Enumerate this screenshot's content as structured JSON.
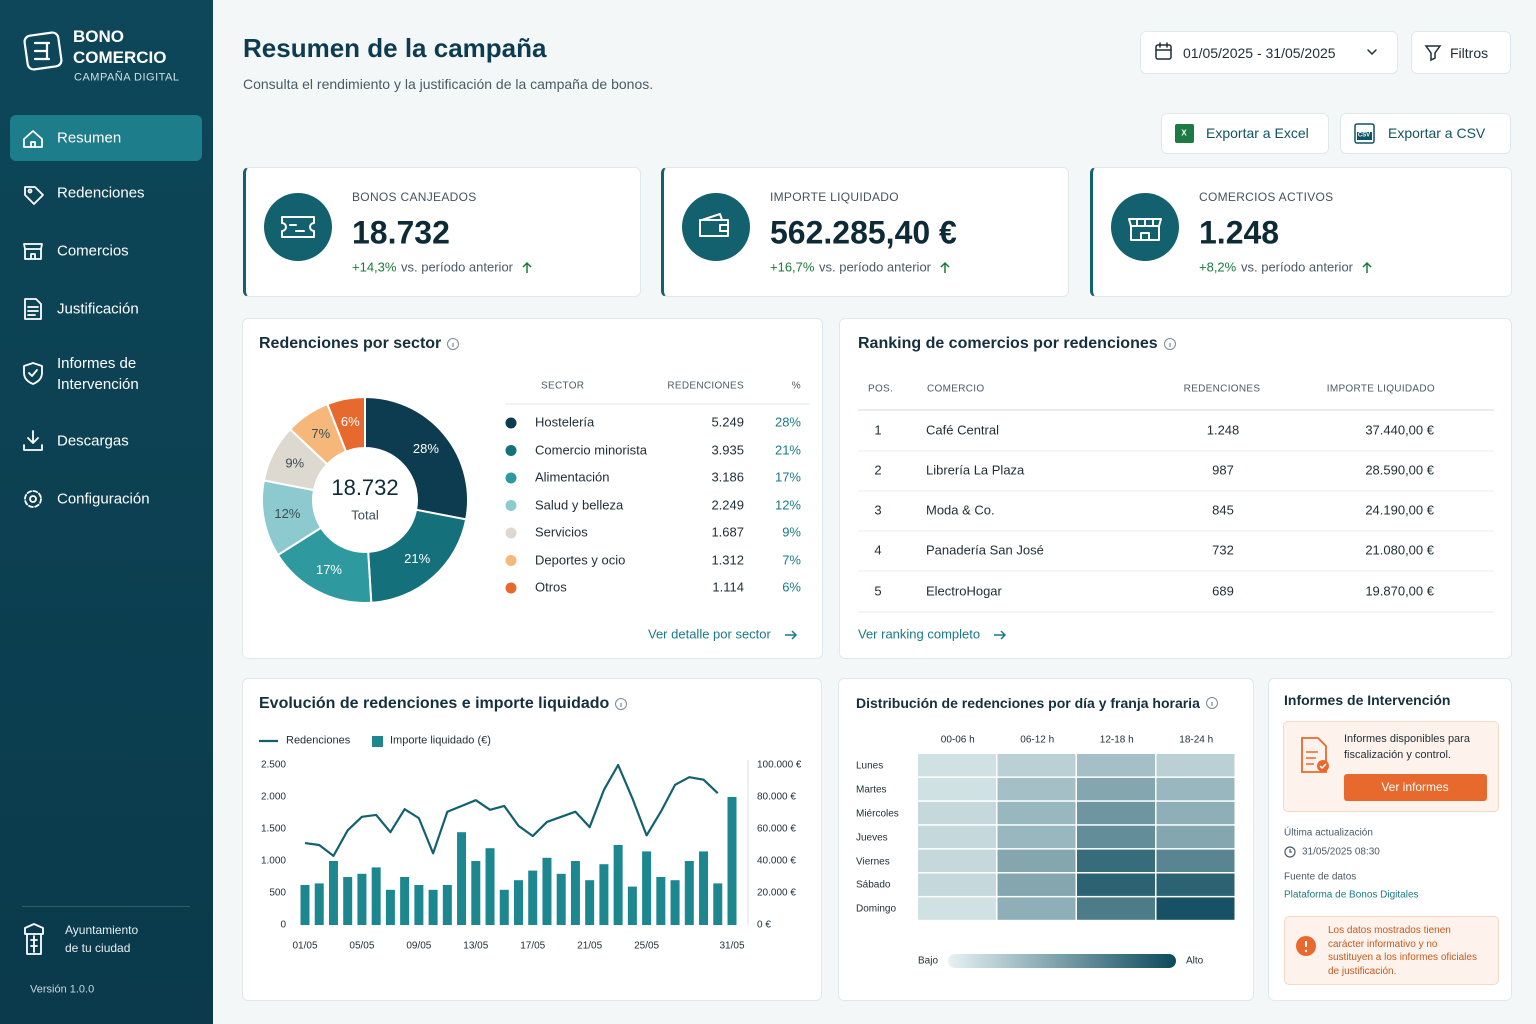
{
  "sidebar": {
    "brand": {
      "line1": "BONO",
      "line2": "COMERCIO",
      "line3": "CAMPAÑA DIGITAL"
    },
    "nav": [
      "Resumen",
      "Redenciones",
      "Comercios",
      "Justificación",
      "Informes de Intervención",
      "Descargas",
      "Configuración"
    ],
    "org": {
      "line1": "Ayuntamiento",
      "line2": "de tu ciudad"
    },
    "version": "Versión 1.0.0"
  },
  "header": {
    "title": "Resumen de la campaña",
    "subtitle": "Consulta el rendimiento y la justificación de la campaña de bonos.",
    "date_range": "01/05/2025 - 31/05/2025",
    "filters": "Filtros",
    "excel_badge": "X",
    "export_excel": "Exportar a Excel",
    "csv_badge": "CSV",
    "export_csv": "Exportar a CSV"
  },
  "kpis": [
    {
      "label": "BONOS CANJEADOS",
      "value": "18.732",
      "change": "+14,3%",
      "note": "vs. período anterior"
    },
    {
      "label": "IMPORTE LIQUIDADO",
      "value": "562.285,40 €",
      "change": "+16,7%",
      "note": "vs. período anterior"
    },
    {
      "label": "COMERCIOS ACTIVOS",
      "value": "1.248",
      "change": "+8,2%",
      "note": "vs. período anterior"
    }
  ],
  "ranking": {
    "title": "Ranking de comercios por redenciones",
    "columns": [
      "POS.",
      "COMERCIO",
      "REDENCIONES",
      "IMPORTE LIQUIDADO"
    ],
    "rows": [
      [
        "1",
        "Café Central",
        "1.248",
        "37.440,00 €"
      ],
      [
        "2",
        "Librería La Plaza",
        "987",
        "28.590,00 €"
      ],
      [
        "3",
        "Moda & Co.",
        "845",
        "24.190,00 €"
      ],
      [
        "4",
        "Panadería San José",
        "732",
        "21.080,00 €"
      ],
      [
        "5",
        "ElectroHogar",
        "689",
        "19.870,00 €"
      ]
    ],
    "link": "Ver ranking completo"
  },
  "reports": {
    "title": "Informes de Intervención",
    "text": "Informes disponibles para fiscalización y control.",
    "button": "Ver informes",
    "updated_label": "Última actualización",
    "updated": "31/05/2025 08:30",
    "source_label": "Fuente de datos",
    "source": "Plataforma de Bonos Digitales",
    "notice": "Los datos mostrados tienen carácter informativo y no sustituyen a los informes oficiales de justificación."
  },
  "chart_data": [
    {
      "type": "donut",
      "title": "Redenciones por sector",
      "center_value": "18.732",
      "center_label": "Total",
      "columns": [
        "SECTOR",
        "REDENCIONES",
        "%"
      ],
      "categories": [
        "Hostelería",
        "Comercio minorista",
        "Alimentación",
        "Salud y belleza",
        "Servicios",
        "Deportes y ocio",
        "Otros"
      ],
      "values": [
        5249,
        3935,
        3186,
        2249,
        1687,
        1312,
        1114
      ],
      "value_labels": [
        "5.249",
        "3.935",
        "3.186",
        "2.249",
        "1.687",
        "1.312",
        "1.114"
      ],
      "shares": [
        28,
        21,
        17,
        12,
        9,
        7,
        6
      ],
      "share_labels": [
        "28%",
        "21%",
        "17%",
        "12%",
        "9%",
        "7%",
        "6%"
      ],
      "colors": [
        "#0d3b4f",
        "#14707a",
        "#2e9aa0",
        "#8ccad0",
        "#ddd8d0",
        "#f5b77a",
        "#e8692e"
      ],
      "link": "Ver detalle por sector"
    },
    {
      "type": "bar_line",
      "title": "Evolución de redenciones e importe liquidado",
      "categories": [
        "01/05",
        null,
        null,
        null,
        "05/05",
        null,
        null,
        null,
        "09/05",
        null,
        null,
        null,
        "13/05",
        null,
        null,
        null,
        "17/05",
        null,
        null,
        null,
        "21/05",
        null,
        null,
        null,
        "25/05",
        null,
        null,
        null,
        null,
        null,
        "31/05"
      ],
      "series": [
        {
          "name": "Redenciones",
          "type": "line",
          "color": "#13616e",
          "values": [
            1280,
            1250,
            1080,
            1480,
            1690,
            1720,
            1450,
            1810,
            1670,
            1120,
            1770,
            1860,
            1950,
            1800,
            1860,
            1550,
            1390,
            1610,
            1690,
            1770,
            1530,
            2110,
            2500,
            1980,
            1400,
            1770,
            2190,
            2310,
            2270,
            2060,
            null
          ]
        },
        {
          "name": "Importe liquidado (€)",
          "type": "bar",
          "axis": "y2",
          "color": "#1d8790",
          "values": [
            25000,
            26000,
            40000,
            30000,
            32000,
            36000,
            22000,
            30000,
            25000,
            22000,
            25000,
            58000,
            40000,
            48000,
            22000,
            28000,
            34000,
            42000,
            32000,
            40000,
            28000,
            38000,
            50000,
            24000,
            46000,
            30000,
            28000,
            40000,
            46000,
            26000,
            80000
          ]
        }
      ],
      "ylim": [
        0,
        2500
      ],
      "yticks": [
        0,
        500,
        {
          "value": 1000,
          "label": "1.000"
        },
        {
          "value": 1500,
          "label": "1.500"
        },
        {
          "value": 2000,
          "label": "2.000"
        },
        {
          "value": 2500,
          "label": "2.500"
        }
      ],
      "y2lim": [
        0,
        100000
      ],
      "y2ticks": [
        {
          "value": 0,
          "label": "0 €"
        },
        {
          "value": 20000,
          "label": "20.000 €"
        },
        {
          "value": 40000,
          "label": "40.000 €"
        },
        {
          "value": 60000,
          "label": "60.000 €"
        },
        {
          "value": 80000,
          "label": "80.000 €"
        },
        {
          "value": 100000,
          "label": "100.000 €"
        }
      ]
    },
    {
      "type": "heatmap",
      "title": "Distribución de redenciones por día y franja horaria",
      "x": [
        "00-06 h",
        "06-12 h",
        "12-18 h",
        "18-24 h"
      ],
      "y": [
        "Lunes",
        "Martes",
        "Miércoles",
        "Jueves",
        "Viernes",
        "Sábado",
        "Domingo"
      ],
      "values": [
        [
          10,
          20,
          30,
          20
        ],
        [
          10,
          30,
          45,
          35
        ],
        [
          15,
          35,
          55,
          40
        ],
        [
          15,
          35,
          60,
          45
        ],
        [
          15,
          45,
          80,
          65
        ],
        [
          15,
          45,
          85,
          85
        ],
        [
          10,
          40,
          70,
          95
        ]
      ],
      "zlim": [
        0,
        100
      ],
      "colors": [
        "#e6f2f3",
        "#0b4a5c"
      ],
      "low_label": "Bajo",
      "high_label": "Alto"
    }
  ]
}
